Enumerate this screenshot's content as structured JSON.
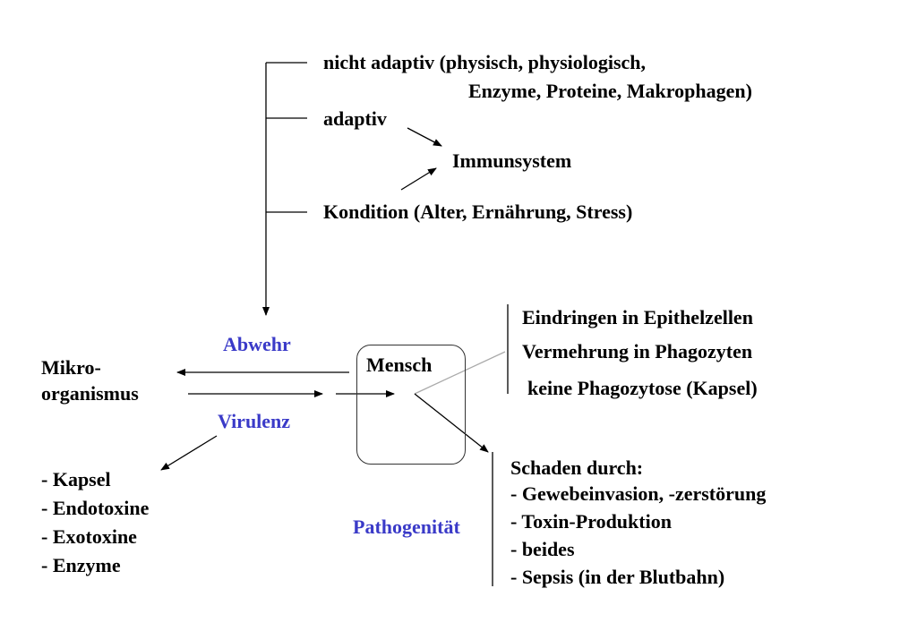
{
  "defense_factors": {
    "non_adaptive_line1": "nicht adaptiv (physisch, physiologisch,",
    "non_adaptive_line2": "Enzyme, Proteine, Makrophagen)",
    "adaptive": "adaptiv",
    "immune_system": "Immunsystem",
    "condition": "Kondition (Alter, Ernährung, Stress)"
  },
  "center": {
    "defense_label": "Abwehr",
    "virulence_label": "Virulenz",
    "host": "Mensch",
    "microorganism_line1": "Mikro-",
    "microorganism_line2": "organismus",
    "pathogenicity_label": "Pathogenität"
  },
  "virulence_factors": [
    "- Kapsel",
    "- Endotoxine",
    "- Exotoxine",
    "- Enzyme"
  ],
  "invasion_list": [
    "Eindringen in Epithelzellen",
    "Vermehrung in Phagozyten",
    "keine Phagozytose (Kapsel)"
  ],
  "damage": {
    "heading": "Schaden durch:",
    "items": [
      "- Gewebeinvasion, -zerstörung",
      "- Toxin-Produktion",
      "- beides",
      "- Sepsis (in der Blutbahn)"
    ]
  },
  "colors": {
    "accent_label": "#3a3ac8",
    "text": "#000000",
    "line": "#000000",
    "faint_line": "#aaaaaa"
  }
}
